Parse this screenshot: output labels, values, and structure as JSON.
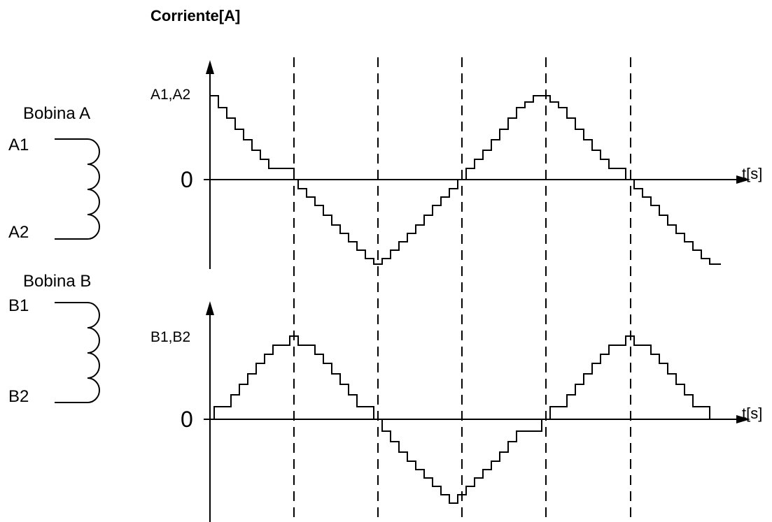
{
  "title": "Corriente[A]",
  "coil_a": {
    "name": "Bobina A",
    "start": "A1",
    "end": "A2"
  },
  "coil_b": {
    "name": "Bobina B",
    "start": "B1",
    "end": "B2"
  },
  "plot_a": {
    "ylabel": "A1,A2",
    "zero": "0",
    "xlabel": "t[s]"
  },
  "plot_b": {
    "ylabel": "B1,B2",
    "zero": "0",
    "xlabel": "t[s]"
  },
  "waveform": {
    "steps_per_quarter_period": 10,
    "step_heights_of_peak": [
      0,
      1,
      2,
      3,
      4,
      5,
      6,
      7,
      8,
      9,
      10
    ]
  }
}
